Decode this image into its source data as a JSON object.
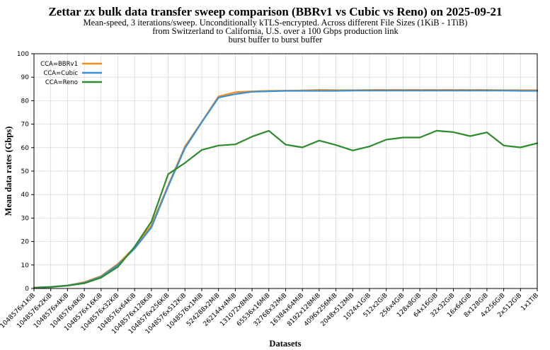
{
  "chart_data": {
    "type": "line",
    "title": "Zettar zx bulk data transfer sweep comparison (BBRv1 vs Cubic vs Reno) on 2025-09-21",
    "subtitle_lines": [
      "Mean-speed, 3 iterations/sweep. Unconditionally kTLS-encrypted. Across different File Sizes (1KiB - 1TiB)",
      "from Switzerland to California, U.S. over a 100 Gbps production link",
      "burst buffer to burst buffer"
    ],
    "xlabel": "Datasets",
    "ylabel": "Mean data rates (Gbps)",
    "ylim": [
      0,
      100
    ],
    "yticks": [
      0,
      10,
      20,
      30,
      40,
      50,
      60,
      70,
      80,
      90,
      100
    ],
    "grid": true,
    "legend_position": "top-left",
    "categories": [
      "1048576x1KiB",
      "1048576x2KiB",
      "1048576x4KiB",
      "1048576x8KiB",
      "1048576x16KiB",
      "1048576x32KiB",
      "1048576x64KiB",
      "1048576x128KiB",
      "1048576x256KiB",
      "1048576x512KiB",
      "1048576x1MiB",
      "524288x2MiB",
      "262144x4MiB",
      "131072x8MiB",
      "65536x16MiB",
      "32768x32MiB",
      "16384x64MiB",
      "8192x128MiB",
      "4096x256MiB",
      "2048x512MiB",
      "1024x1GiB",
      "512x2GiB",
      "256x4GiB",
      "128x8GiB",
      "64x16GiB",
      "32x32GiB",
      "16x64GiB",
      "8x128GiB",
      "4x256GiB",
      "2x512GiB",
      "1x1TiB"
    ],
    "series": [
      {
        "name": "CCA=BBRv1",
        "color": "#f28e1c",
        "values": [
          0.4,
          0.7,
          1.3,
          2.7,
          5.3,
          10.5,
          17.5,
          27.0,
          44.0,
          60.5,
          71.0,
          81.8,
          83.6,
          84.0,
          84.2,
          84.3,
          84.4,
          84.6,
          84.5,
          84.5,
          84.6,
          84.6,
          84.6,
          84.6,
          84.6,
          84.6,
          84.6,
          84.6,
          84.5,
          84.5,
          84.5
        ]
      },
      {
        "name": "CCA=Cubic",
        "color": "#3a8fd9",
        "values": [
          0.4,
          0.7,
          1.3,
          2.4,
          5.0,
          10.0,
          17.0,
          26.0,
          43.5,
          59.8,
          70.8,
          81.3,
          82.8,
          83.8,
          84.0,
          84.2,
          84.2,
          84.2,
          84.2,
          84.3,
          84.3,
          84.3,
          84.3,
          84.3,
          84.3,
          84.3,
          84.3,
          84.3,
          84.3,
          84.2,
          84.2
        ]
      },
      {
        "name": "CCA=Reno",
        "color": "#2e8b2e",
        "values": [
          0.3,
          0.6,
          1.2,
          2.2,
          4.6,
          9.2,
          17.8,
          28.5,
          48.7,
          53.5,
          59.0,
          60.9,
          61.4,
          64.7,
          67.2,
          61.3,
          60.1,
          63.0,
          61.1,
          58.8,
          60.5,
          63.4,
          64.3,
          64.3,
          67.2,
          66.6,
          64.9,
          66.5,
          60.9,
          60.1,
          61.9
        ]
      }
    ]
  }
}
